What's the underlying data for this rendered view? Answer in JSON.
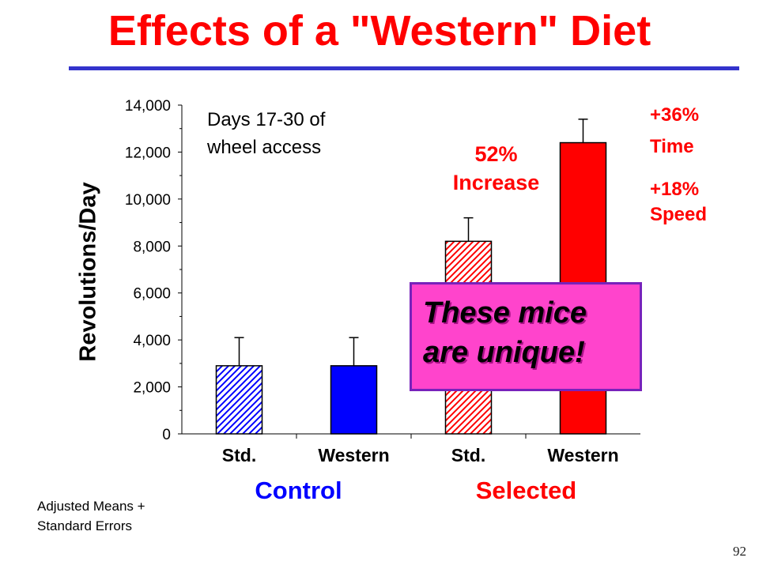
{
  "slide": {
    "title": "Effects of a \"Western\" Diet",
    "page_number": "92",
    "footnote_line1": "Adjusted Means +",
    "footnote_line2": "Standard Errors"
  },
  "annotations": {
    "days_line1": "Days 17-30 of",
    "days_line2": "wheel access",
    "increase_line1": "52%",
    "increase_line2": "Increase",
    "time_line1": "+36%",
    "time_line2": "Time",
    "speed_line1": "+18%",
    "speed_line2": "Speed",
    "callout_line1": "These mice",
    "callout_line2": "are unique!"
  },
  "colors": {
    "title": "#ff0000",
    "rule": "#3333cc",
    "control": "#0000ff",
    "selected": "#ff0000",
    "callout_fill": "#ff44cc",
    "callout_border": "#7722bb"
  },
  "chart_data": {
    "type": "bar",
    "ylabel": "Revolutions/Day",
    "xlabel": "",
    "ylim": [
      0,
      14000
    ],
    "yticks": [
      0,
      2000,
      4000,
      6000,
      8000,
      10000,
      12000,
      14000
    ],
    "ytick_labels": [
      "0",
      "2,000",
      "4,000",
      "6,000",
      "8,000",
      "10,000",
      "12,000",
      "14,000"
    ],
    "categories": [
      "Std.",
      "Western",
      "Std.",
      "Western"
    ],
    "groups": [
      {
        "label": "Control",
        "color": "#0000ff",
        "categories": [
          0,
          1
        ]
      },
      {
        "label": "Selected",
        "color": "#ff0000",
        "categories": [
          2,
          3
        ]
      }
    ],
    "values": [
      2900,
      2900,
      8200,
      12400
    ],
    "errors": [
      1200,
      1200,
      1000,
      1000
    ],
    "fills": [
      "hatched",
      "solid",
      "hatched",
      "solid"
    ],
    "bar_colors": [
      "#0000ff",
      "#0000ff",
      "#ff0000",
      "#ff0000"
    ]
  }
}
